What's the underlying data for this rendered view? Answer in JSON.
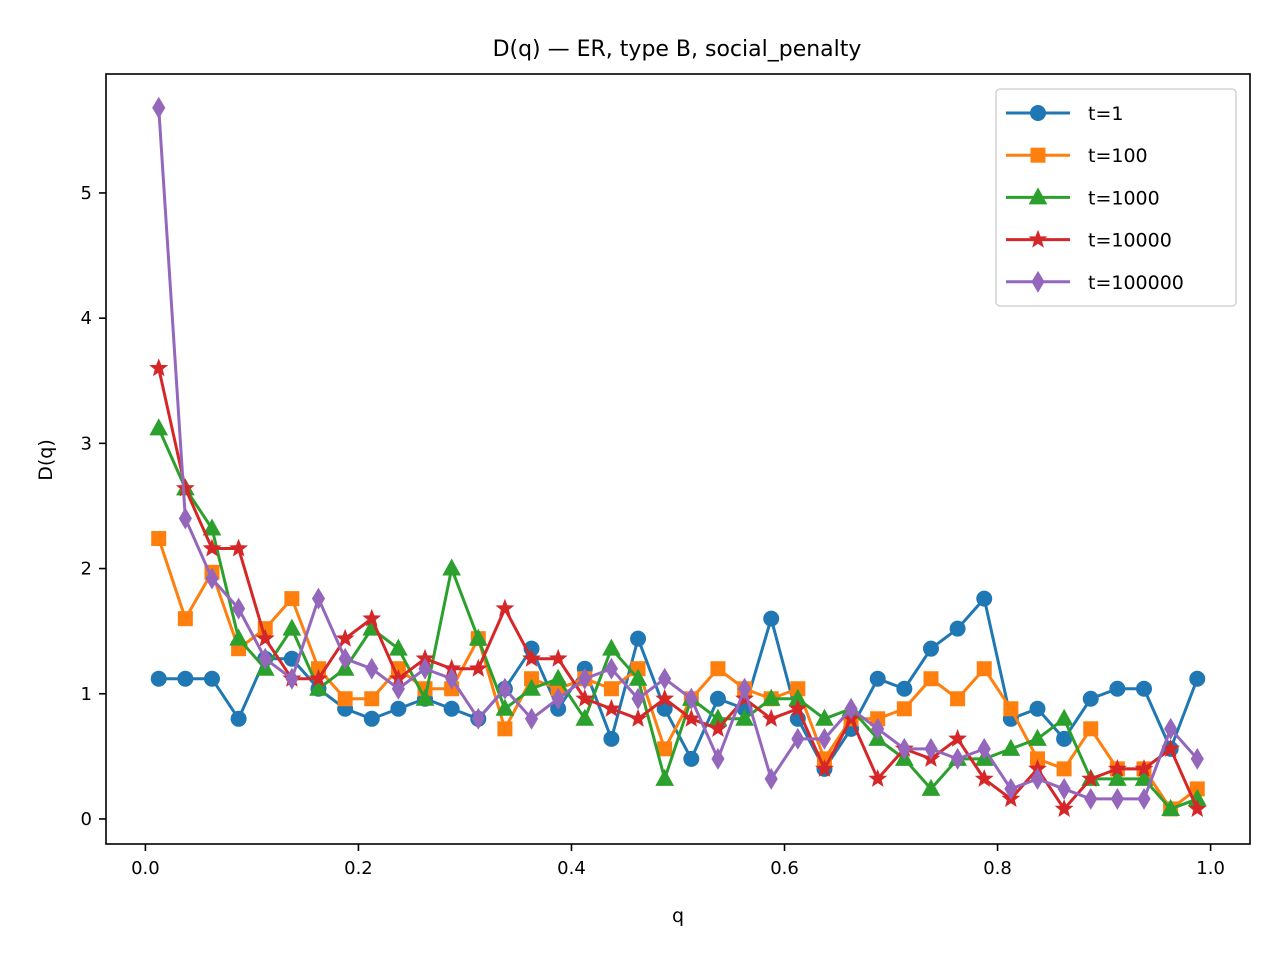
{
  "chart_data": {
    "type": "line",
    "title": "D(q) — ER, type B, social_penalty",
    "xlabel": "q",
    "ylabel": "D(q)",
    "xlim": [
      -0.037,
      1.037
    ],
    "ylim": [
      -0.2,
      5.95
    ],
    "xticks": [
      0.0,
      0.2,
      0.4,
      0.6,
      0.8,
      1.0
    ],
    "xtick_labels": [
      "0.0",
      "0.2",
      "0.4",
      "0.6",
      "0.8",
      "1.0"
    ],
    "yticks": [
      0,
      1,
      2,
      3,
      4,
      5
    ],
    "ytick_labels": [
      "0",
      "1",
      "2",
      "3",
      "4",
      "5"
    ],
    "grid": false,
    "legend_position": "top-right",
    "x": [
      0.0125,
      0.0375,
      0.0625,
      0.0875,
      0.1125,
      0.1375,
      0.1625,
      0.1875,
      0.2125,
      0.2375,
      0.2625,
      0.2875,
      0.3125,
      0.3375,
      0.3625,
      0.3875,
      0.4125,
      0.4375,
      0.4625,
      0.4875,
      0.5125,
      0.5375,
      0.5625,
      0.5875,
      0.6125,
      0.6375,
      0.6625,
      0.6875,
      0.7125,
      0.7375,
      0.7625,
      0.7875,
      0.8125,
      0.8375,
      0.8625,
      0.8875,
      0.9125,
      0.9375,
      0.9625,
      0.9875
    ],
    "series": [
      {
        "name": "t=1",
        "color": "#1f77b4",
        "marker": "circle",
        "values": [
          1.12,
          1.12,
          1.12,
          0.8,
          1.28,
          1.28,
          1.04,
          0.88,
          0.8,
          0.88,
          0.96,
          0.88,
          0.8,
          1.04,
          1.36,
          0.88,
          1.2,
          0.64,
          1.44,
          0.88,
          0.48,
          0.96,
          0.88,
          1.6,
          0.8,
          0.4,
          0.72,
          1.12,
          1.04,
          1.36,
          1.52,
          1.76,
          0.8,
          0.88,
          0.64,
          0.96,
          1.04,
          1.04,
          0.56,
          1.12
        ]
      },
      {
        "name": "t=100",
        "color": "#ff7f0e",
        "marker": "square",
        "values": [
          2.24,
          1.6,
          1.97,
          1.36,
          1.52,
          1.76,
          1.2,
          0.96,
          0.96,
          1.2,
          1.04,
          1.04,
          1.44,
          0.72,
          1.12,
          1.04,
          1.12,
          1.04,
          1.2,
          0.56,
          0.96,
          1.2,
          1.04,
          0.96,
          1.04,
          0.48,
          0.8,
          0.8,
          0.88,
          1.12,
          0.96,
          1.2,
          0.88,
          0.48,
          0.4,
          0.72,
          0.4,
          0.4,
          0.08,
          0.24
        ]
      },
      {
        "name": "t=1000",
        "color": "#2ca02c",
        "marker": "triangle",
        "values": [
          3.12,
          2.64,
          2.32,
          1.44,
          1.2,
          1.52,
          1.04,
          1.2,
          1.52,
          1.36,
          0.96,
          2.0,
          1.44,
          0.88,
          1.04,
          1.12,
          0.8,
          1.36,
          1.12,
          0.32,
          0.96,
          0.8,
          0.8,
          0.96,
          0.96,
          0.8,
          0.88,
          0.64,
          0.48,
          0.24,
          0.48,
          0.48,
          0.56,
          0.64,
          0.8,
          0.32,
          0.32,
          0.32,
          0.08,
          0.16
        ]
      },
      {
        "name": "t=10000",
        "color": "#d62728",
        "marker": "star",
        "values": [
          3.6,
          2.64,
          2.16,
          2.16,
          1.44,
          1.12,
          1.12,
          1.44,
          1.6,
          1.12,
          1.28,
          1.2,
          1.2,
          1.68,
          1.28,
          1.28,
          0.96,
          0.88,
          0.8,
          0.96,
          0.8,
          0.72,
          0.96,
          0.8,
          0.88,
          0.4,
          0.8,
          0.32,
          0.56,
          0.48,
          0.64,
          0.32,
          0.16,
          0.4,
          0.08,
          0.32,
          0.4,
          0.4,
          0.56,
          0.08
        ]
      },
      {
        "name": "t=100000",
        "color": "#9467bd",
        "marker": "diamond",
        "values": [
          5.68,
          2.4,
          1.92,
          1.68,
          1.28,
          1.12,
          1.76,
          1.28,
          1.2,
          1.04,
          1.2,
          1.12,
          0.8,
          1.04,
          0.8,
          0.96,
          1.12,
          1.2,
          0.96,
          1.12,
          0.96,
          0.48,
          1.04,
          0.32,
          0.64,
          0.64,
          0.88,
          0.72,
          0.56,
          0.56,
          0.48,
          0.56,
          0.24,
          0.32,
          0.24,
          0.16,
          0.16,
          0.16,
          0.72,
          0.48
        ]
      }
    ]
  }
}
